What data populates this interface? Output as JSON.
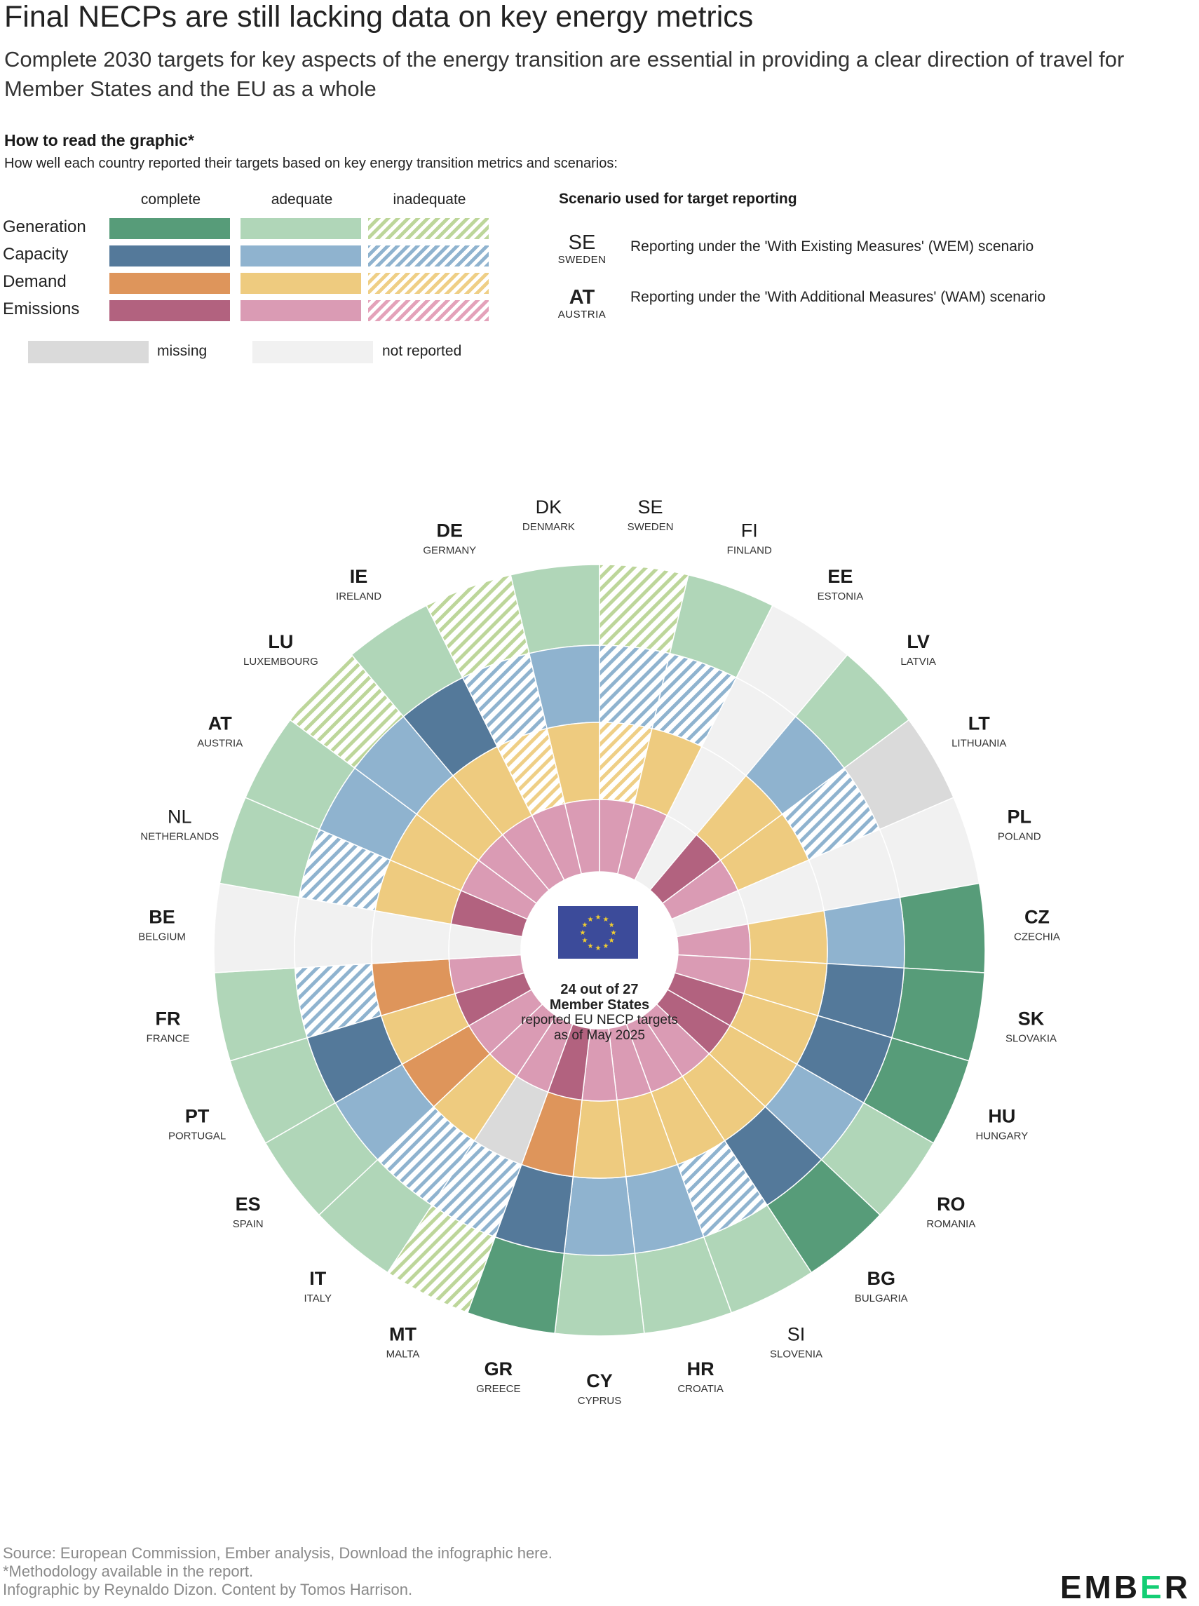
{
  "title": "Final NECPs are still lacking data on key energy metrics",
  "subtitle": "Complete 2030 targets for key aspects of the energy transition are essential in providing a clear direction of travel for Member States and the EU as a whole",
  "howto": {
    "title": "How to read the graphic*",
    "description": "How well each country reported their targets based on key energy transition metrics and scenarios:"
  },
  "legend": {
    "columns": [
      "complete",
      "adequate",
      "inadequate"
    ],
    "rows": [
      {
        "label": "Generation",
        "colors": [
          "#579c79",
          "#b0d6b8",
          "#bdd69a"
        ]
      },
      {
        "label": "Capacity",
        "colors": [
          "#54799a",
          "#8fb3cf",
          "#8fb3cf"
        ]
      },
      {
        "label": "Demand",
        "colors": [
          "#de955b",
          "#eecb7f",
          "#efcf86"
        ]
      },
      {
        "label": "Emissions",
        "colors": [
          "#b2627f",
          "#da9bb4",
          "#e4a2ba"
        ]
      }
    ],
    "missing_label": "missing",
    "missing_color": "#dadada",
    "not_reported_label": "not reported",
    "not_reported_color": "#f1f1f1"
  },
  "scenario": {
    "title": "Scenario used for target reporting",
    "items": [
      {
        "code": "SE",
        "name": "SWEDEN",
        "bold": false,
        "desc": "Reporting under the 'With Existing Measures' (WEM) scenario"
      },
      {
        "code": "AT",
        "name": "AUSTRIA",
        "bold": true,
        "desc": "Reporting under the 'With Additional Measures' (WAM) scenario"
      }
    ]
  },
  "center": {
    "line1": "24 out of 27",
    "line2": "Member States",
    "line3": "reported EU NECP targets",
    "line4": "as of May 2025"
  },
  "footer": {
    "source": "Source: European Commission, Ember analysis, Download the infographic here.",
    "method": "*Methodology available in the report.",
    "credit": "Infographic by Reynaldo Dizon. Content by Tomos Harrison."
  },
  "logo": {
    "left": "EMB",
    "mid": "E",
    "right": "R"
  },
  "chart_data": {
    "type": "radial",
    "rings_outer_to_inner": [
      "Generation",
      "Capacity",
      "Demand",
      "Emissions"
    ],
    "levels": [
      "complete",
      "adequate",
      "inadequate",
      "missing",
      "not reported"
    ],
    "countries": [
      {
        "code": "DK",
        "name": "DENMARK",
        "scenario": "WEM",
        "generation": "adequate",
        "capacity": "adequate",
        "demand": "adequate",
        "emissions": "adequate"
      },
      {
        "code": "SE",
        "name": "SWEDEN",
        "scenario": "WEM",
        "generation": "inadequate",
        "capacity": "inadequate",
        "demand": "inadequate",
        "emissions": "adequate"
      },
      {
        "code": "FI",
        "name": "FINLAND",
        "scenario": "WEM",
        "generation": "adequate",
        "capacity": "inadequate",
        "demand": "adequate",
        "emissions": "adequate"
      },
      {
        "code": "EE",
        "name": "ESTONIA",
        "scenario": "WAM",
        "generation": "not reported",
        "capacity": "not reported",
        "demand": "not reported",
        "emissions": "not reported"
      },
      {
        "code": "LV",
        "name": "LATVIA",
        "scenario": "WAM",
        "generation": "adequate",
        "capacity": "adequate",
        "demand": "adequate",
        "emissions": "complete"
      },
      {
        "code": "LT",
        "name": "LITHUANIA",
        "scenario": "WAM",
        "generation": "missing",
        "capacity": "inadequate",
        "demand": "adequate",
        "emissions": "adequate"
      },
      {
        "code": "PL",
        "name": "POLAND",
        "scenario": "WAM",
        "generation": "not reported",
        "capacity": "not reported",
        "demand": "not reported",
        "emissions": "not reported"
      },
      {
        "code": "CZ",
        "name": "CZECHIA",
        "scenario": "WAM",
        "generation": "complete",
        "capacity": "adequate",
        "demand": "adequate",
        "emissions": "adequate"
      },
      {
        "code": "SK",
        "name": "SLOVAKIA",
        "scenario": "WAM",
        "generation": "complete",
        "capacity": "complete",
        "demand": "adequate",
        "emissions": "adequate"
      },
      {
        "code": "HU",
        "name": "HUNGARY",
        "scenario": "WAM",
        "generation": "complete",
        "capacity": "complete",
        "demand": "adequate",
        "emissions": "complete"
      },
      {
        "code": "RO",
        "name": "ROMANIA",
        "scenario": "WAM",
        "generation": "adequate",
        "capacity": "adequate",
        "demand": "adequate",
        "emissions": "complete"
      },
      {
        "code": "BG",
        "name": "BULGARIA",
        "scenario": "WAM",
        "generation": "complete",
        "capacity": "complete",
        "demand": "adequate",
        "emissions": "adequate"
      },
      {
        "code": "SI",
        "name": "SLOVENIA",
        "scenario": "WEM",
        "generation": "adequate",
        "capacity": "inadequate",
        "demand": "adequate",
        "emissions": "adequate"
      },
      {
        "code": "HR",
        "name": "CROATIA",
        "scenario": "WAM",
        "generation": "adequate",
        "capacity": "adequate",
        "demand": "adequate",
        "emissions": "adequate"
      },
      {
        "code": "CY",
        "name": "CYPRUS",
        "scenario": "WAM",
        "generation": "adequate",
        "capacity": "adequate",
        "demand": "adequate",
        "emissions": "adequate"
      },
      {
        "code": "GR",
        "name": "GREECE",
        "scenario": "WAM",
        "generation": "complete",
        "capacity": "complete",
        "demand": "complete",
        "emissions": "complete"
      },
      {
        "code": "MT",
        "name": "MALTA",
        "scenario": "WAM",
        "generation": "inadequate",
        "capacity": "inadequate",
        "demand": "missing",
        "emissions": "adequate"
      },
      {
        "code": "IT",
        "name": "ITALY",
        "scenario": "WAM",
        "generation": "adequate",
        "capacity": "inadequate",
        "demand": "adequate",
        "emissions": "adequate"
      },
      {
        "code": "ES",
        "name": "SPAIN",
        "scenario": "WAM",
        "generation": "adequate",
        "capacity": "adequate",
        "demand": "complete",
        "emissions": "adequate"
      },
      {
        "code": "PT",
        "name": "PORTUGAL",
        "scenario": "WAM",
        "generation": "adequate",
        "capacity": "complete",
        "demand": "adequate",
        "emissions": "complete"
      },
      {
        "code": "FR",
        "name": "FRANCE",
        "scenario": "WAM",
        "generation": "adequate",
        "capacity": "inadequate",
        "demand": "complete",
        "emissions": "adequate"
      },
      {
        "code": "BE",
        "name": "BELGIUM",
        "scenario": "WAM",
        "generation": "not reported",
        "capacity": "not reported",
        "demand": "not reported",
        "emissions": "not reported"
      },
      {
        "code": "NL",
        "name": "NETHERLANDS",
        "scenario": "WEM",
        "generation": "adequate",
        "capacity": "inadequate",
        "demand": "adequate",
        "emissions": "complete"
      },
      {
        "code": "AT",
        "name": "AUSTRIA",
        "scenario": "WAM",
        "generation": "adequate",
        "capacity": "adequate",
        "demand": "adequate",
        "emissions": "adequate"
      },
      {
        "code": "LU",
        "name": "LUXEMBOURG",
        "scenario": "WAM",
        "generation": "inadequate",
        "capacity": "adequate",
        "demand": "adequate",
        "emissions": "adequate"
      },
      {
        "code": "IE",
        "name": "IRELAND",
        "scenario": "WAM",
        "generation": "adequate",
        "capacity": "complete",
        "demand": "adequate",
        "emissions": "adequate"
      },
      {
        "code": "DE",
        "name": "GERMANY",
        "scenario": "WAM",
        "generation": "inadequate",
        "capacity": "inadequate",
        "demand": "inadequate",
        "emissions": "adequate"
      }
    ]
  }
}
